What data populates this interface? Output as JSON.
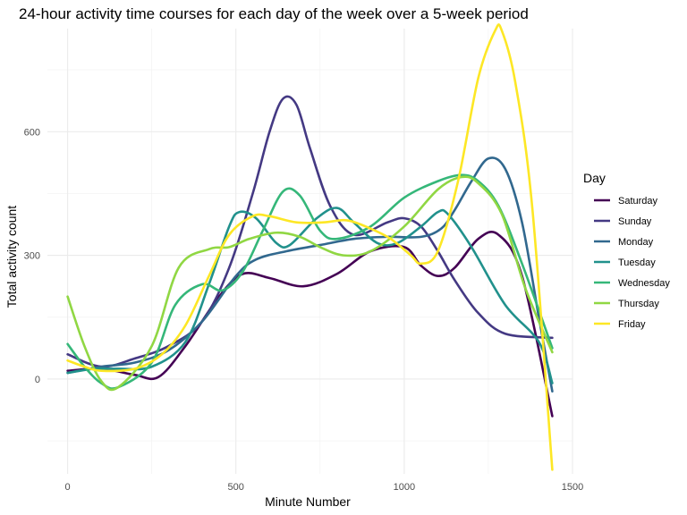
{
  "chart_data": {
    "type": "line",
    "title": "24-hour activity time courses for each day of the week over a 5-week period",
    "xlabel": "Minute Number",
    "ylabel": "Total activity count",
    "xlim": [
      -60,
      1500
    ],
    "ylim": [
      -230,
      850
    ],
    "x_ticks": [
      0,
      500,
      1000,
      1500
    ],
    "y_ticks": [
      0,
      300,
      600
    ],
    "grid": true,
    "legend_title": "Day",
    "legend_position": "right",
    "series": [
      {
        "name": "Saturday",
        "color": "#440154",
        "points": [
          [
            0,
            20
          ],
          [
            100,
            25
          ],
          [
            200,
            10
          ],
          [
            270,
            5
          ],
          [
            350,
            80
          ],
          [
            450,
            200
          ],
          [
            520,
            255
          ],
          [
            600,
            245
          ],
          [
            700,
            225
          ],
          [
            800,
            255
          ],
          [
            900,
            310
          ],
          [
            1000,
            320
          ],
          [
            1050,
            275
          ],
          [
            1100,
            250
          ],
          [
            1150,
            270
          ],
          [
            1220,
            340
          ],
          [
            1280,
            350
          ],
          [
            1350,
            250
          ],
          [
            1440,
            -90
          ]
        ]
      },
      {
        "name": "Sunday",
        "color": "#443983",
        "points": [
          [
            0,
            60
          ],
          [
            100,
            30
          ],
          [
            200,
            50
          ],
          [
            300,
            80
          ],
          [
            400,
            140
          ],
          [
            480,
            270
          ],
          [
            550,
            450
          ],
          [
            600,
            600
          ],
          [
            640,
            680
          ],
          [
            680,
            665
          ],
          [
            720,
            560
          ],
          [
            780,
            420
          ],
          [
            850,
            350
          ],
          [
            950,
            380
          ],
          [
            1000,
            390
          ],
          [
            1050,
            370
          ],
          [
            1100,
            310
          ],
          [
            1150,
            240
          ],
          [
            1220,
            160
          ],
          [
            1300,
            110
          ],
          [
            1440,
            100
          ]
        ]
      },
      {
        "name": "Monday",
        "color": "#31688e",
        "points": [
          [
            0,
            15
          ],
          [
            100,
            30
          ],
          [
            200,
            40
          ],
          [
            300,
            70
          ],
          [
            400,
            140
          ],
          [
            500,
            250
          ],
          [
            560,
            290
          ],
          [
            650,
            310
          ],
          [
            750,
            325
          ],
          [
            850,
            340
          ],
          [
            950,
            345
          ],
          [
            1050,
            345
          ],
          [
            1110,
            365
          ],
          [
            1150,
            410
          ],
          [
            1200,
            480
          ],
          [
            1250,
            535
          ],
          [
            1300,
            510
          ],
          [
            1350,
            380
          ],
          [
            1400,
            150
          ],
          [
            1440,
            -30
          ]
        ]
      },
      {
        "name": "Tuesday",
        "color": "#21918c",
        "points": [
          [
            0,
            15
          ],
          [
            80,
            25
          ],
          [
            150,
            25
          ],
          [
            250,
            30
          ],
          [
            350,
            90
          ],
          [
            420,
            230
          ],
          [
            480,
            370
          ],
          [
            510,
            405
          ],
          [
            560,
            390
          ],
          [
            620,
            330
          ],
          [
            660,
            325
          ],
          [
            740,
            390
          ],
          [
            800,
            415
          ],
          [
            850,
            380
          ],
          [
            920,
            330
          ],
          [
            980,
            330
          ],
          [
            1050,
            370
          ],
          [
            1100,
            405
          ],
          [
            1130,
            400
          ],
          [
            1200,
            320
          ],
          [
            1300,
            180
          ],
          [
            1400,
            90
          ],
          [
            1440,
            -10
          ]
        ]
      },
      {
        "name": "Wednesday",
        "color": "#35b779",
        "points": [
          [
            0,
            85
          ],
          [
            50,
            30
          ],
          [
            100,
            -10
          ],
          [
            150,
            -20
          ],
          [
            250,
            40
          ],
          [
            320,
            180
          ],
          [
            400,
            230
          ],
          [
            460,
            215
          ],
          [
            520,
            260
          ],
          [
            580,
            360
          ],
          [
            640,
            455
          ],
          [
            690,
            445
          ],
          [
            750,
            360
          ],
          [
            800,
            340
          ],
          [
            900,
            370
          ],
          [
            1000,
            440
          ],
          [
            1100,
            480
          ],
          [
            1170,
            495
          ],
          [
            1220,
            480
          ],
          [
            1280,
            420
          ],
          [
            1350,
            280
          ],
          [
            1440,
            75
          ]
        ]
      },
      {
        "name": "Thursday",
        "color": "#90d743",
        "points": [
          [
            0,
            200
          ],
          [
            50,
            80
          ],
          [
            100,
            -5
          ],
          [
            150,
            -20
          ],
          [
            250,
            80
          ],
          [
            330,
            270
          ],
          [
            420,
            315
          ],
          [
            480,
            320
          ],
          [
            540,
            340
          ],
          [
            620,
            355
          ],
          [
            690,
            345
          ],
          [
            750,
            320
          ],
          [
            820,
            300
          ],
          [
            900,
            310
          ],
          [
            1000,
            370
          ],
          [
            1100,
            460
          ],
          [
            1170,
            490
          ],
          [
            1220,
            475
          ],
          [
            1290,
            400
          ],
          [
            1360,
            220
          ],
          [
            1440,
            65
          ]
        ]
      },
      {
        "name": "Friday",
        "color": "#fde725",
        "points": [
          [
            0,
            45
          ],
          [
            50,
            30
          ],
          [
            100,
            20
          ],
          [
            200,
            25
          ],
          [
            280,
            60
          ],
          [
            350,
            130
          ],
          [
            420,
            250
          ],
          [
            480,
            350
          ],
          [
            550,
            395
          ],
          [
            600,
            395
          ],
          [
            680,
            380
          ],
          [
            760,
            380
          ],
          [
            830,
            385
          ],
          [
            900,
            365
          ],
          [
            960,
            340
          ],
          [
            1020,
            300
          ],
          [
            1050,
            280
          ],
          [
            1100,
            310
          ],
          [
            1160,
            480
          ],
          [
            1220,
            730
          ],
          [
            1270,
            845
          ],
          [
            1290,
            845
          ],
          [
            1330,
            720
          ],
          [
            1380,
            420
          ],
          [
            1440,
            -220
          ]
        ]
      }
    ]
  }
}
